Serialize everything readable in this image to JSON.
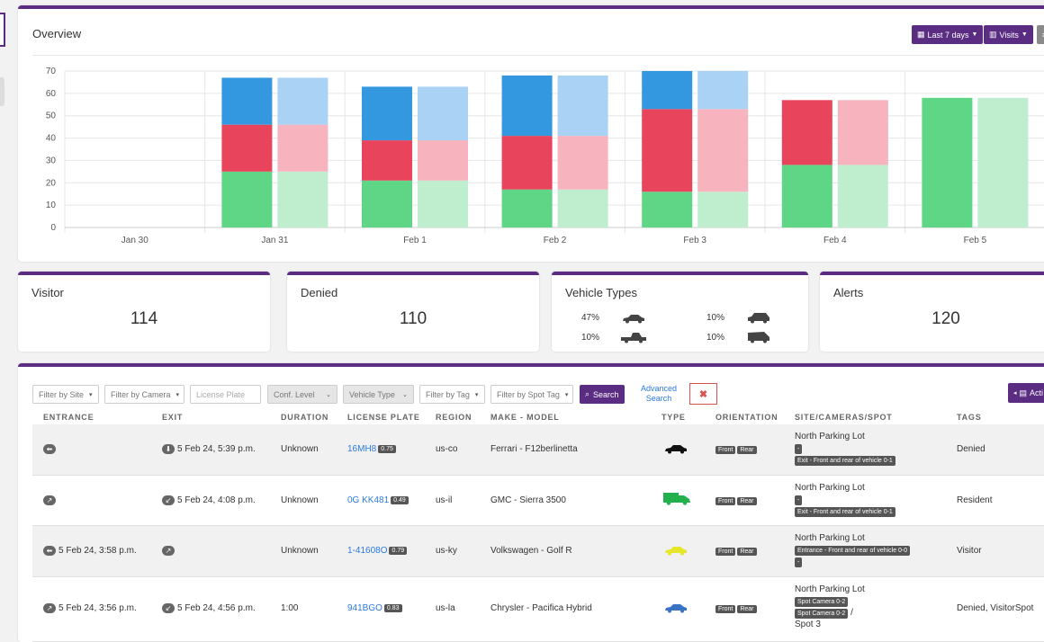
{
  "overview": {
    "title": "Overview",
    "date_range_label": "Last 7 days",
    "metric_label": "Visits"
  },
  "chart_data": {
    "type": "bar",
    "categories": [
      "Jan 30",
      "Jan 31",
      "Feb 1",
      "Feb 2",
      "Feb 3",
      "Feb 4",
      "Feb 5"
    ],
    "ylim": [
      0,
      70
    ],
    "yticks": [
      0,
      10,
      20,
      30,
      40,
      50,
      60,
      70
    ],
    "stacked": true,
    "grid": true,
    "series": [
      {
        "values": [
          0,
          25,
          21,
          17,
          16,
          28,
          58
        ],
        "color": "#5fd685",
        "light_color": "#bfeecf"
      },
      {
        "values": [
          0,
          21,
          18,
          24,
          37,
          29,
          0
        ],
        "color": "#e8455c",
        "light_color": "#f7b4bf"
      },
      {
        "values": [
          0,
          21,
          24,
          27,
          17,
          0,
          0
        ],
        "color": "#3498e0",
        "light_color": "#aad2f4"
      }
    ]
  },
  "stats": {
    "visitor": {
      "title": "Visitor",
      "value": "114"
    },
    "denied": {
      "title": "Denied",
      "value": "110"
    },
    "vehicle_types": {
      "title": "Vehicle Types",
      "items": [
        {
          "pct": "47%",
          "icon": "car-icon"
        },
        {
          "pct": "10%",
          "icon": "suv-icon"
        },
        {
          "pct": "10%",
          "icon": "pickup-icon"
        },
        {
          "pct": "10%",
          "icon": "van-icon"
        }
      ]
    },
    "alerts": {
      "title": "Alerts",
      "value": "120"
    }
  },
  "filters": {
    "site": "Filter by Site",
    "camera": "Filter by Camera",
    "plate_placeholder": "License Plate",
    "conf": "Conf. Level",
    "vehicle_type": "Vehicle Type",
    "tag": "Filter by Tag",
    "spot_tag": "Filter by Spot Tag",
    "search": "Search",
    "advanced_1": "Advanced",
    "advanced_2": "Search",
    "clear": "✖",
    "actions": "Acti"
  },
  "table": {
    "headers": [
      "ENTRANCE",
      "EXIT",
      "DURATION",
      "LICENSE PLATE",
      "REGION",
      "MAKE - MODEL",
      "TYPE",
      "ORIENTATION",
      "SITE/CAMERAS/SPOT",
      "TAGS"
    ],
    "rows": [
      {
        "entrance": "",
        "exit": "5 Feb 24, 5:39 p.m.",
        "duration": "Unknown",
        "plate": "16MH8",
        "conf": "0.75",
        "region": "us-co",
        "make_model": "Ferrari - F12berlinetta",
        "type_color": "#111111",
        "orientation": [
          "Front",
          "Rear"
        ],
        "site": "North Parking Lot",
        "camera_lines": [
          "-",
          "Exit - Front and rear of vehicle 0-1"
        ],
        "tags": "Denied"
      },
      {
        "entrance": "",
        "exit": "5 Feb 24, 4:08 p.m.",
        "duration": "Unknown",
        "plate": "0G KK481",
        "conf": "0.49",
        "region": "us-il",
        "make_model": "GMC - Sierra 3500",
        "type_color": "#22b14c",
        "orientation": [
          "Front",
          "Rear"
        ],
        "site": "North Parking Lot",
        "camera_lines": [
          "-",
          "Exit - Front and rear of vehicle 0-1"
        ],
        "tags": "Resident"
      },
      {
        "entrance": "5 Feb 24, 3:58 p.m.",
        "exit": "",
        "duration": "Unknown",
        "plate": "1-41608O",
        "conf": "0.79",
        "region": "us-ky",
        "make_model": "Volkswagen - Golf R",
        "type_color": "#e6e62a",
        "orientation": [
          "Front",
          "Rear"
        ],
        "site": "North Parking Lot",
        "camera_lines": [
          "Entrance - Front and rear of vehicle 0-0",
          "-"
        ],
        "tags": "Visitor"
      },
      {
        "entrance": "5 Feb 24, 3:56 p.m.",
        "exit": "5 Feb 24, 4:56 p.m.",
        "duration": "1:00",
        "plate": "941BGO",
        "conf": "0.83",
        "region": "us-la",
        "make_model": "Chrysler - Pacifica Hybrid",
        "type_color": "#3a73c4",
        "orientation": [
          "Front",
          "Rear"
        ],
        "site": "North Parking Lot",
        "camera_lines": [
          "Spot Camera 0-2",
          "Spot Camera 0-2"
        ],
        "spot_sep": "/",
        "spot": "Spot 3",
        "tags": "Denied, VisitorSpot"
      }
    ]
  }
}
